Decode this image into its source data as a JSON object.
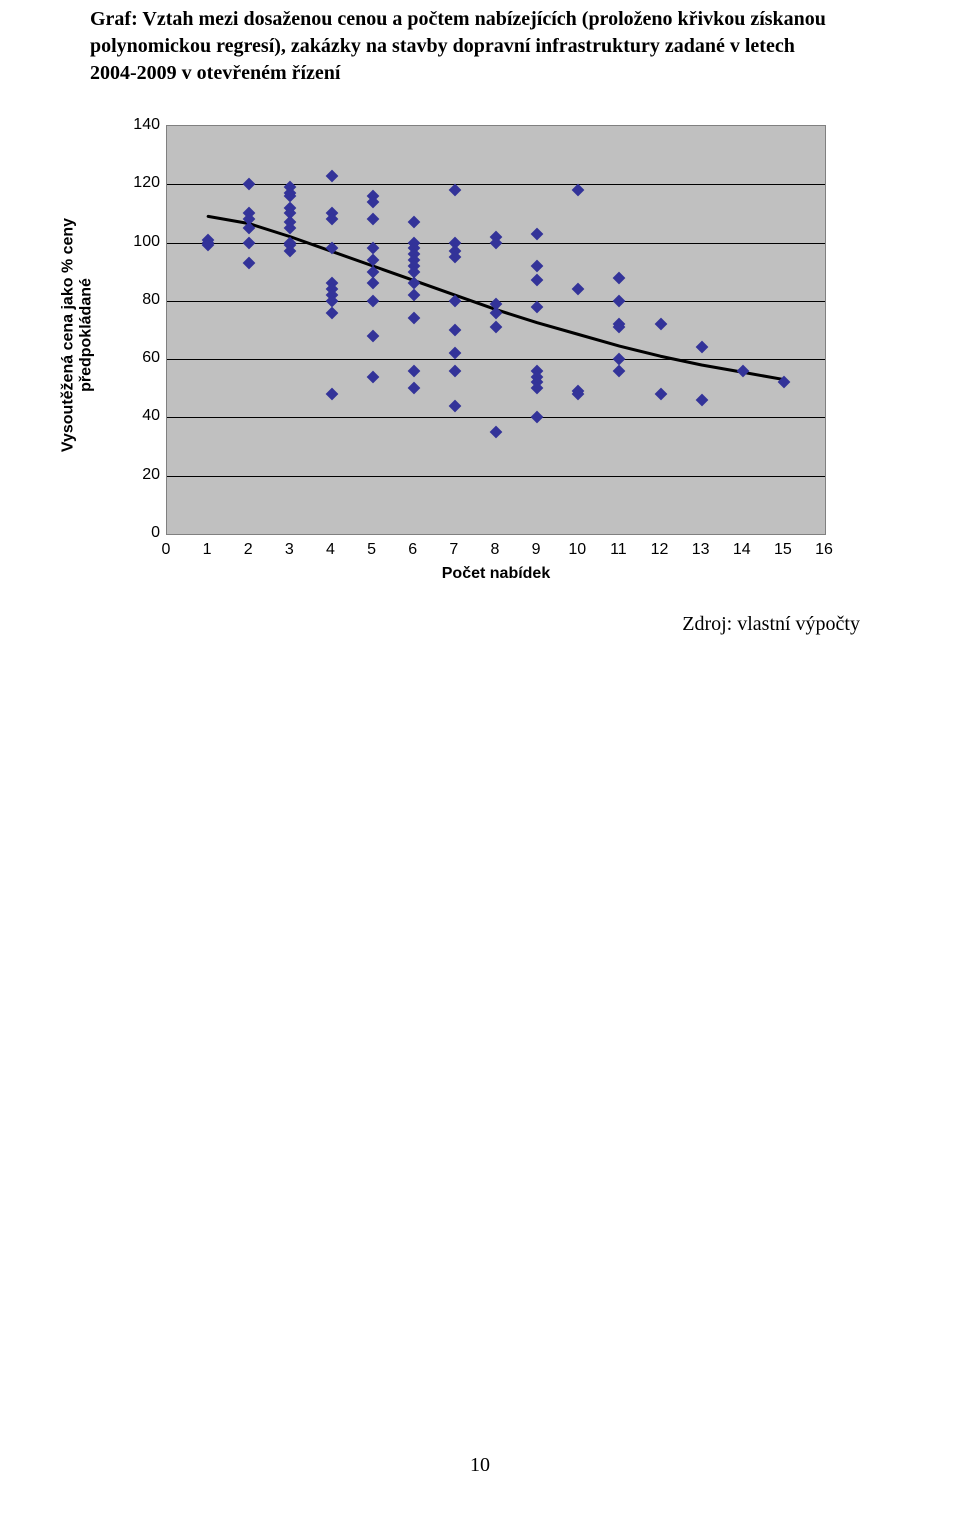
{
  "title_line1": "Graf: Vztah mezi dosaženou cenou a počtem nabízejících (proloženo křivkou získanou",
  "title_line2": "polynomickou regresí), zakázky na stavby dopravní infrastruktury zadané v letech",
  "title_line3": "2004-2009 v otevřeném řízení",
  "source": "Zdroj: vlastní výpočty",
  "page_number": "10",
  "chart": {
    "type": "scatter",
    "xlabel": "Počet nabídek",
    "ylabel": "Vysoutěžená cena jako % ceny\npředpokládané",
    "xlim": [
      0,
      16
    ],
    "ylim": [
      0,
      140
    ],
    "ytick_step": 20,
    "xtick_step": 1,
    "background_color": "#c0c0c0",
    "grid_color": "#000000",
    "border_color": "#808080",
    "label_fontsize": 16,
    "tick_fontsize": 16,
    "marker_color": "#333399",
    "marker_size": 9,
    "curve_color": "#000000",
    "curve_width": 3,
    "curve_points": [
      [
        1,
        109
      ],
      [
        2,
        106.5
      ],
      [
        3,
        102
      ],
      [
        4,
        97
      ],
      [
        5,
        92
      ],
      [
        6,
        87
      ],
      [
        7,
        82
      ],
      [
        8,
        77
      ],
      [
        9,
        72.5
      ],
      [
        10,
        68.5
      ],
      [
        11,
        64.5
      ],
      [
        12,
        61
      ],
      [
        13,
        58
      ],
      [
        14,
        55.5
      ],
      [
        15,
        53
      ]
    ],
    "points": [
      [
        1,
        101
      ],
      [
        1,
        100
      ],
      [
        1,
        99
      ],
      [
        2,
        120
      ],
      [
        2,
        110
      ],
      [
        2,
        108
      ],
      [
        2,
        105
      ],
      [
        2,
        100
      ],
      [
        2,
        93
      ],
      [
        3,
        119
      ],
      [
        3,
        117
      ],
      [
        3,
        116
      ],
      [
        3,
        112
      ],
      [
        3,
        110
      ],
      [
        3,
        107
      ],
      [
        3,
        105
      ],
      [
        3,
        100
      ],
      [
        3,
        99
      ],
      [
        3,
        97
      ],
      [
        4,
        123
      ],
      [
        4,
        110
      ],
      [
        4,
        108
      ],
      [
        4,
        98
      ],
      [
        4,
        86
      ],
      [
        4,
        84
      ],
      [
        4,
        82
      ],
      [
        4,
        80
      ],
      [
        4,
        76
      ],
      [
        4,
        48
      ],
      [
        5,
        116
      ],
      [
        5,
        114
      ],
      [
        5,
        108
      ],
      [
        5,
        98
      ],
      [
        5,
        94
      ],
      [
        5,
        90
      ],
      [
        5,
        86
      ],
      [
        5,
        80
      ],
      [
        5,
        68
      ],
      [
        5,
        54
      ],
      [
        6,
        107
      ],
      [
        6,
        100
      ],
      [
        6,
        98
      ],
      [
        6,
        96
      ],
      [
        6,
        94
      ],
      [
        6,
        92
      ],
      [
        6,
        90
      ],
      [
        6,
        86
      ],
      [
        6,
        82
      ],
      [
        6,
        74
      ],
      [
        6,
        56
      ],
      [
        6,
        50
      ],
      [
        7,
        118
      ],
      [
        7,
        100
      ],
      [
        7,
        97
      ],
      [
        7,
        95
      ],
      [
        7,
        80
      ],
      [
        7,
        70
      ],
      [
        7,
        62
      ],
      [
        7,
        56
      ],
      [
        7,
        44
      ],
      [
        8,
        102
      ],
      [
        8,
        100
      ],
      [
        8,
        79
      ],
      [
        8,
        76
      ],
      [
        8,
        71
      ],
      [
        8,
        35
      ],
      [
        9,
        103
      ],
      [
        9,
        92
      ],
      [
        9,
        87
      ],
      [
        9,
        78
      ],
      [
        9,
        56
      ],
      [
        9,
        54
      ],
      [
        9,
        52
      ],
      [
        9,
        50
      ],
      [
        9,
        40
      ],
      [
        10,
        118
      ],
      [
        10,
        84
      ],
      [
        10,
        49
      ],
      [
        10,
        48
      ],
      [
        11,
        88
      ],
      [
        11,
        80
      ],
      [
        11,
        72
      ],
      [
        11,
        71
      ],
      [
        11,
        60
      ],
      [
        11,
        56
      ],
      [
        12,
        72
      ],
      [
        12,
        48
      ],
      [
        13,
        64
      ],
      [
        13,
        46
      ],
      [
        14,
        56
      ],
      [
        15,
        52
      ]
    ]
  }
}
